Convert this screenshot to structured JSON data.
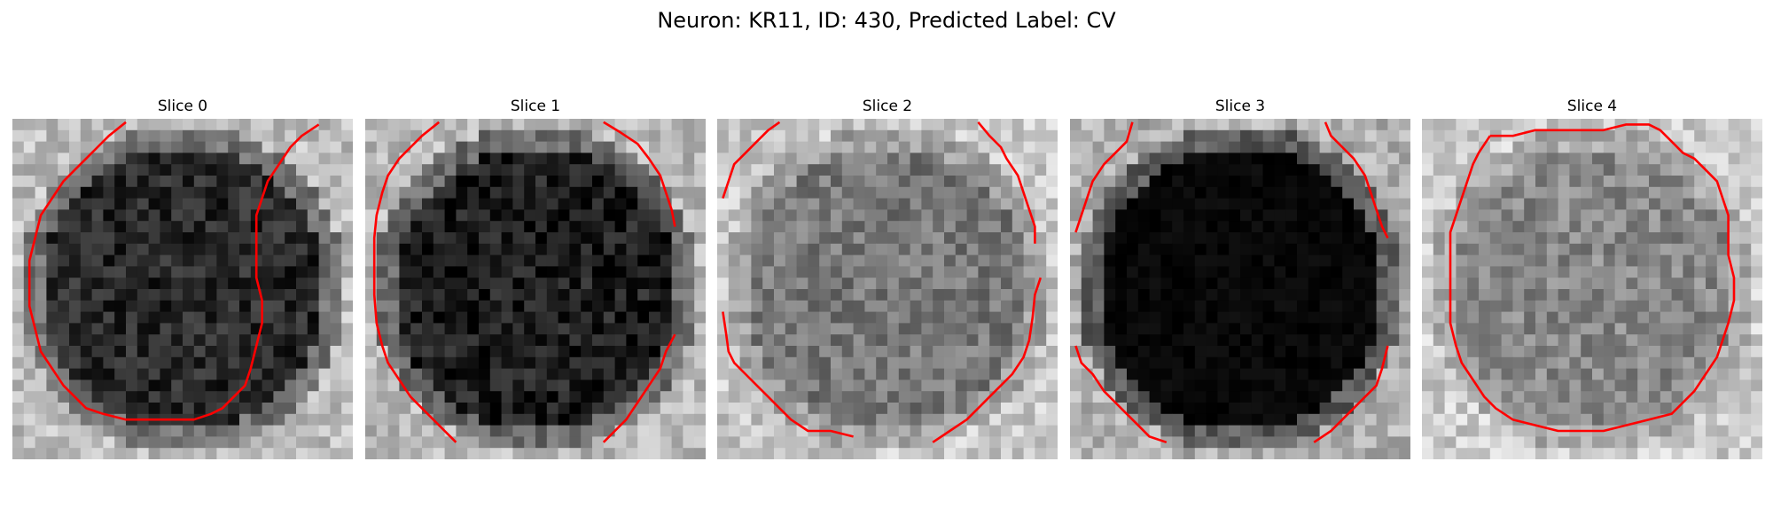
{
  "figure": {
    "title": "Neuron: KR11, ID: 430, Predicted Label: CV"
  },
  "contour_color": "#ff0000",
  "slices": [
    {
      "title": "Slice 0",
      "base_gray": 40,
      "border_gray": 190,
      "seed": 11
    },
    {
      "title": "Slice 1",
      "base_gray": 30,
      "border_gray": 185,
      "seed": 23
    },
    {
      "title": "Slice 2",
      "base_gray": 120,
      "border_gray": 200,
      "seed": 37
    },
    {
      "title": "Slice 3",
      "base_gray": 8,
      "border_gray": 175,
      "seed": 41
    },
    {
      "title": "Slice 4",
      "base_gray": 135,
      "border_gray": 205,
      "seed": 53
    }
  ]
}
